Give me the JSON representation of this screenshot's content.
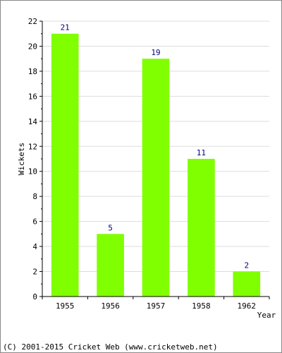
{
  "chart_data": {
    "type": "bar",
    "categories": [
      "1955",
      "1956",
      "1957",
      "1958",
      "1962"
    ],
    "values": [
      21,
      5,
      19,
      11,
      2
    ],
    "data_labels": [
      "21",
      "5",
      "19",
      "11",
      "2"
    ],
    "xlabel": "Year",
    "ylabel": "Wickets",
    "ylim": [
      0,
      22
    ],
    "yticks": [
      0,
      2,
      4,
      6,
      8,
      10,
      12,
      14,
      16,
      18,
      20,
      22
    ],
    "grid": true,
    "legend": "none",
    "bar_color": "#80ff00",
    "label_color": "#000080"
  },
  "footer": {
    "copyright": "(C) 2001-2015 Cricket Web (www.cricketweb.net)"
  }
}
